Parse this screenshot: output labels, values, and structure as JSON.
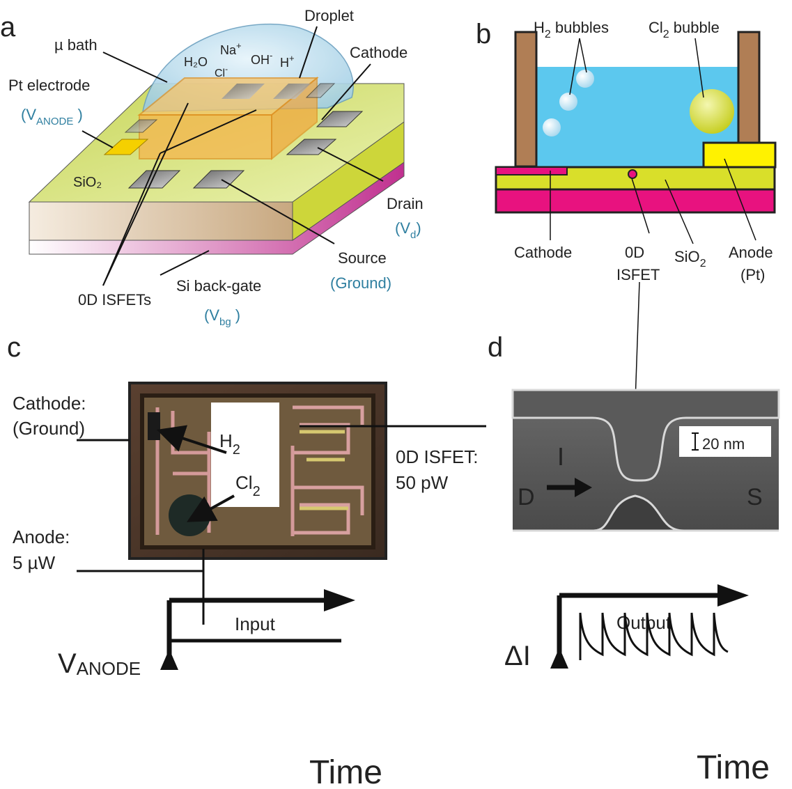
{
  "panels": {
    "a": {
      "letter": "a",
      "mu_bath": "µ bath",
      "droplet": "Droplet",
      "h2o": "H₂O",
      "na": "Na",
      "na_sup": "+",
      "oh": "OH",
      "oh_sup": "-",
      "h": "H",
      "h_sup": "+",
      "cl": "Cl",
      "cl_sup": "-",
      "cathode": "Cathode",
      "pt_electrode": "Pt electrode",
      "v_anode": "(V",
      "v_anode_sub": "ANODE",
      "v_anode_close": " )",
      "sio2": "SiO₂",
      "drain": "Drain",
      "vd_open": "(V",
      "vd_sub": "d",
      "vd_close": ")",
      "source": "Source",
      "ground": "(Ground)",
      "isfets": "0D ISFETs",
      "back_gate": "Si back-gate",
      "vbg_open": "(V",
      "vbg_sub": "bg",
      "vbg_close": " )"
    },
    "b": {
      "letter": "b",
      "h2_bubbles_pre": "H",
      "h2_bubbles_sub": "2",
      "h2_bubbles_post": " bubbles",
      "cl2_pre": "Cl",
      "cl2_sub": "2",
      "cl2_post": " bubble",
      "cathode": "Cathode",
      "isfet_1": "0D",
      "isfet_2": "ISFET",
      "sio2_pre": "SiO",
      "sio2_sub": "2",
      "anode_1": "Anode",
      "anode_2": "(Pt)"
    },
    "c": {
      "letter": "c",
      "cathode_1": "Cathode:",
      "cathode_2": "(Ground)",
      "h2_pre": "H",
      "h2_sub": "2",
      "cl2_pre": "Cl",
      "cl2_sub": "2",
      "anode_1": "Anode:",
      "anode_2": "5 µW",
      "isfet_1": "0D ISFET:",
      "isfet_2": "50 pW",
      "input": "Input",
      "v_main": "V",
      "v_sub": "ANODE",
      "time": "Time"
    },
    "d": {
      "letter": "d",
      "scale": "20 nm",
      "current": "I",
      "drain": "D",
      "source": "S",
      "output": "Output",
      "delta_i": "ΔI",
      "time": "Time"
    }
  },
  "colors": {
    "water": "#5cc8ee",
    "sio2": "#d9df2a",
    "silicon": "#e8127f",
    "wall": "#b07e55",
    "anode": "#fff200",
    "isfet_text": "#2f7fa0"
  }
}
